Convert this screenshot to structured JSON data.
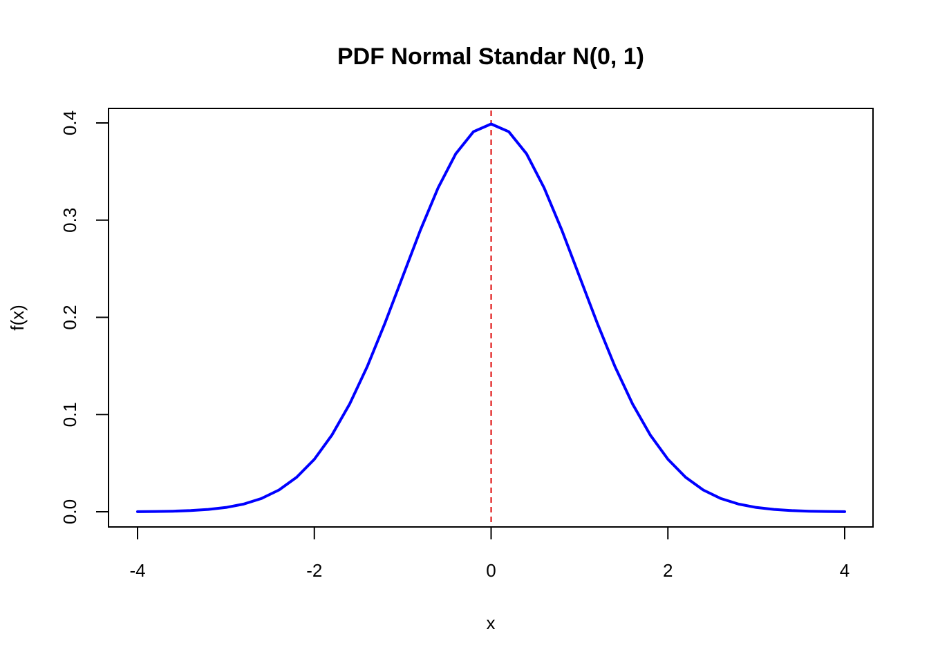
{
  "chart_data": {
    "type": "line",
    "title": "PDF Normal Standar N(0, 1)",
    "xlabel": "x",
    "ylabel": "f(x)",
    "xlim": [
      -4,
      4
    ],
    "ylim": [
      0,
      0.4
    ],
    "x_ticks": [
      -4,
      -2,
      0,
      2,
      4
    ],
    "x_tick_labels": [
      "-4",
      "-2",
      "0",
      "2",
      "4"
    ],
    "y_ticks": [
      0,
      0.1,
      0.2,
      0.3,
      0.4
    ],
    "y_tick_labels": [
      "0.0",
      "0.1",
      "0.2",
      "0.3",
      "0.4"
    ],
    "grid": false,
    "series": [
      {
        "color": "#0000ff",
        "x": [
          -4.0,
          -3.8,
          -3.6,
          -3.4,
          -3.2,
          -3.0,
          -2.8,
          -2.6,
          -2.4,
          -2.2,
          -2.0,
          -1.8,
          -1.6,
          -1.4,
          -1.2,
          -1.0,
          -0.8,
          -0.6,
          -0.4,
          -0.2,
          0.0,
          0.2,
          0.4,
          0.6,
          0.8,
          1.0,
          1.2,
          1.4,
          1.6,
          1.8,
          2.0,
          2.2,
          2.4,
          2.6,
          2.8,
          3.0,
          3.2,
          3.4,
          3.6,
          3.8,
          4.0
        ],
        "y": [
          0.0001,
          0.0003,
          0.0006,
          0.0012,
          0.0024,
          0.0044,
          0.0079,
          0.0136,
          0.0224,
          0.0355,
          0.054,
          0.079,
          0.1109,
          0.1497,
          0.1942,
          0.242,
          0.2897,
          0.3332,
          0.3683,
          0.391,
          0.3989,
          0.391,
          0.3683,
          0.3332,
          0.2897,
          0.242,
          0.1942,
          0.1497,
          0.1109,
          0.079,
          0.054,
          0.0355,
          0.0224,
          0.0136,
          0.0079,
          0.0044,
          0.0024,
          0.0012,
          0.0006,
          0.0003,
          0.0001
        ]
      }
    ],
    "reference_lines": [
      {
        "orientation": "vertical",
        "x": 0,
        "color": "#dd0000",
        "style": "dashed"
      }
    ]
  }
}
